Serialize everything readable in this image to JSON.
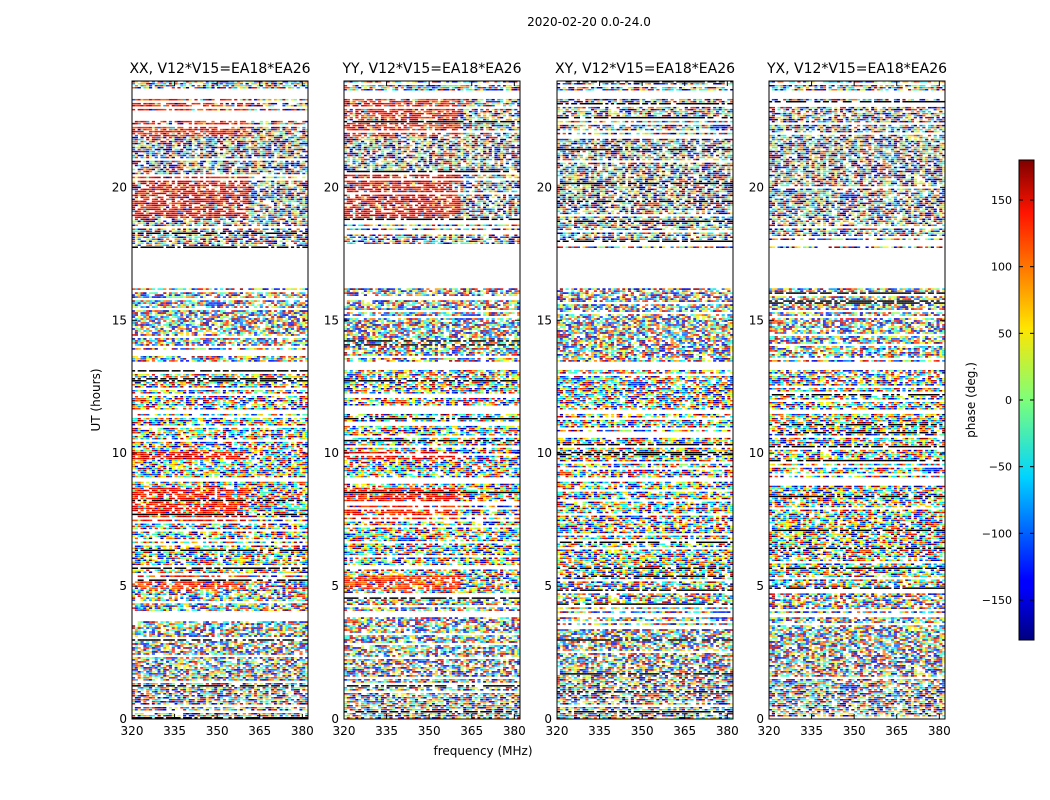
{
  "figure_title": "2020-02-20 0.0-24.0",
  "chart_data": {
    "type": "heatmap",
    "shared": {
      "xlabel": "frequency (MHz)",
      "ylabel": "UT (hours)",
      "xlim": [
        320,
        382
      ],
      "ylim": [
        0,
        24
      ],
      "xticks": [
        320,
        335,
        350,
        365,
        380
      ],
      "yticks": [
        0,
        5,
        10,
        15,
        20
      ],
      "colorbar": {
        "label": "phase (deg.)",
        "range": [
          -180,
          180
        ],
        "ticks": [
          -150,
          -100,
          -50,
          0,
          50,
          100,
          150
        ],
        "colormap": "jet"
      }
    },
    "panels": [
      {
        "id": "XX",
        "title": "XX, V12*V15=EA18*EA26"
      },
      {
        "id": "YY",
        "title": "YY, V12*V15=EA18*EA26"
      },
      {
        "id": "XY",
        "title": "XY, V12*V15=EA18*EA26"
      },
      {
        "id": "YX",
        "title": "YX, V12*V15=EA18*EA26"
      }
    ],
    "coherent_phase_regions": [
      {
        "panels": [
          "XX",
          "YY"
        ],
        "ut_range": [
          18.8,
          20.5
        ],
        "freq_range": [
          320,
          361
        ],
        "phase_deg": 135
      },
      {
        "panels": [
          "XX",
          "YY"
        ],
        "ut_range": [
          21.9,
          23.3
        ],
        "freq_range": [
          320,
          361
        ],
        "phase_deg": 125
      },
      {
        "panels": [
          "XX",
          "YY"
        ],
        "ut_range": [
          7.4,
          8.7
        ],
        "freq_range": [
          320,
          361
        ],
        "phase_deg": 130
      },
      {
        "panels": [
          "XX",
          "YY"
        ],
        "ut_range": [
          9.75,
          10.05
        ],
        "freq_range": [
          320,
          361
        ],
        "phase_deg": 140
      },
      {
        "panels": [
          "XX",
          "YY"
        ],
        "ut_range": [
          4.9,
          5.4
        ],
        "freq_range": [
          320,
          361
        ],
        "phase_deg": 120
      }
    ],
    "flagged_ut_ranges": [
      [
        16.2,
        17.7
      ],
      [
        23.3,
        23.6
      ],
      [
        8.9,
        9.1
      ],
      [
        13.1,
        13.4
      ],
      [
        11.5,
        11.6
      ],
      [
        3.8,
        4.0
      ]
    ]
  }
}
